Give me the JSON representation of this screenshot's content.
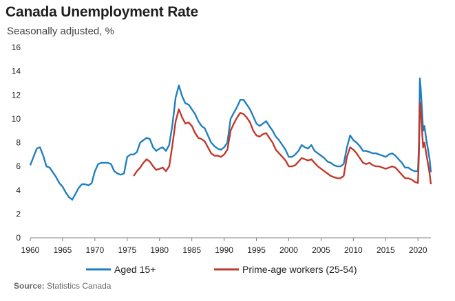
{
  "header": {
    "title": "Canada  Unemployment Rate",
    "subtitle": "Seasonally adjusted, %"
  },
  "source": {
    "label": "Source:",
    "text": "Statistics Canada"
  },
  "chart_data": {
    "type": "line",
    "title": "Canada  Unemployment Rate",
    "subtitle": "Seasonally adjusted, %",
    "xlabel": "",
    "ylabel": "",
    "xlim": [
      1960,
      2022
    ],
    "ylim": [
      0,
      16
    ],
    "xticks": [
      1960,
      1965,
      1970,
      1975,
      1980,
      1985,
      1990,
      1995,
      2000,
      2005,
      2010,
      2015,
      2020
    ],
    "yticks": [
      0,
      2,
      4,
      6,
      8,
      10,
      12,
      14,
      16
    ],
    "grid": false,
    "legend": "bottom",
    "series": [
      {
        "name": "Aged 15+",
        "color": "#1f7fc0",
        "points": [
          [
            1960.0,
            6.1
          ],
          [
            1960.5,
            6.8
          ],
          [
            1961.0,
            7.5
          ],
          [
            1961.5,
            7.6
          ],
          [
            1962.0,
            6.9
          ],
          [
            1962.5,
            6.0
          ],
          [
            1963.0,
            5.9
          ],
          [
            1963.5,
            5.5
          ],
          [
            1964.0,
            5.1
          ],
          [
            1964.5,
            4.6
          ],
          [
            1965.0,
            4.3
          ],
          [
            1965.5,
            3.8
          ],
          [
            1966.0,
            3.4
          ],
          [
            1966.5,
            3.2
          ],
          [
            1967.0,
            3.7
          ],
          [
            1967.5,
            4.2
          ],
          [
            1968.0,
            4.5
          ],
          [
            1968.5,
            4.5
          ],
          [
            1969.0,
            4.4
          ],
          [
            1969.5,
            4.6
          ],
          [
            1970.0,
            5.6
          ],
          [
            1970.5,
            6.2
          ],
          [
            1971.0,
            6.3
          ],
          [
            1971.5,
            6.3
          ],
          [
            1972.0,
            6.3
          ],
          [
            1972.5,
            6.2
          ],
          [
            1973.0,
            5.6
          ],
          [
            1973.5,
            5.4
          ],
          [
            1974.0,
            5.3
          ],
          [
            1974.5,
            5.4
          ],
          [
            1975.0,
            6.8
          ],
          [
            1975.5,
            7.0
          ],
          [
            1976.0,
            7.0
          ],
          [
            1976.5,
            7.2
          ],
          [
            1977.0,
            8.0
          ],
          [
            1977.5,
            8.2
          ],
          [
            1978.0,
            8.4
          ],
          [
            1978.5,
            8.3
          ],
          [
            1979.0,
            7.6
          ],
          [
            1979.5,
            7.3
          ],
          [
            1980.0,
            7.5
          ],
          [
            1980.5,
            7.6
          ],
          [
            1981.0,
            7.3
          ],
          [
            1981.5,
            7.8
          ],
          [
            1982.0,
            9.5
          ],
          [
            1982.5,
            11.8
          ],
          [
            1983.0,
            12.8
          ],
          [
            1983.5,
            11.9
          ],
          [
            1984.0,
            11.3
          ],
          [
            1984.5,
            11.2
          ],
          [
            1985.0,
            10.8
          ],
          [
            1985.5,
            10.4
          ],
          [
            1986.0,
            9.8
          ],
          [
            1986.5,
            9.4
          ],
          [
            1987.0,
            9.2
          ],
          [
            1987.5,
            8.6
          ],
          [
            1988.0,
            8.0
          ],
          [
            1988.5,
            7.7
          ],
          [
            1989.0,
            7.5
          ],
          [
            1989.5,
            7.4
          ],
          [
            1990.0,
            7.6
          ],
          [
            1990.5,
            8.0
          ],
          [
            1991.0,
            10.0
          ],
          [
            1991.5,
            10.5
          ],
          [
            1992.0,
            11.0
          ],
          [
            1992.5,
            11.6
          ],
          [
            1993.0,
            11.6
          ],
          [
            1993.5,
            11.2
          ],
          [
            1994.0,
            10.8
          ],
          [
            1994.5,
            10.2
          ],
          [
            1995.0,
            9.6
          ],
          [
            1995.5,
            9.4
          ],
          [
            1996.0,
            9.6
          ],
          [
            1996.5,
            9.8
          ],
          [
            1997.0,
            9.4
          ],
          [
            1997.5,
            9.0
          ],
          [
            1998.0,
            8.5
          ],
          [
            1998.5,
            8.2
          ],
          [
            1999.0,
            7.8
          ],
          [
            1999.5,
            7.4
          ],
          [
            2000.0,
            6.8
          ],
          [
            2000.5,
            6.8
          ],
          [
            2001.0,
            7.0
          ],
          [
            2001.5,
            7.3
          ],
          [
            2002.0,
            7.8
          ],
          [
            2002.5,
            7.6
          ],
          [
            2003.0,
            7.5
          ],
          [
            2003.5,
            7.8
          ],
          [
            2004.0,
            7.3
          ],
          [
            2004.5,
            7.1
          ],
          [
            2005.0,
            6.9
          ],
          [
            2005.5,
            6.7
          ],
          [
            2006.0,
            6.4
          ],
          [
            2006.5,
            6.3
          ],
          [
            2007.0,
            6.1
          ],
          [
            2007.5,
            6.0
          ],
          [
            2008.0,
            6.0
          ],
          [
            2008.5,
            6.2
          ],
          [
            2009.0,
            7.6
          ],
          [
            2009.5,
            8.6
          ],
          [
            2010.0,
            8.2
          ],
          [
            2010.5,
            8.0
          ],
          [
            2011.0,
            7.7
          ],
          [
            2011.5,
            7.3
          ],
          [
            2012.0,
            7.3
          ],
          [
            2012.5,
            7.2
          ],
          [
            2013.0,
            7.1
          ],
          [
            2013.5,
            7.1
          ],
          [
            2014.0,
            7.0
          ],
          [
            2014.5,
            6.9
          ],
          [
            2015.0,
            6.8
          ],
          [
            2015.5,
            7.0
          ],
          [
            2016.0,
            7.1
          ],
          [
            2016.5,
            6.9
          ],
          [
            2017.0,
            6.6
          ],
          [
            2017.5,
            6.3
          ],
          [
            2018.0,
            5.9
          ],
          [
            2018.5,
            5.9
          ],
          [
            2019.0,
            5.7
          ],
          [
            2019.5,
            5.6
          ],
          [
            2020.0,
            5.6
          ],
          [
            2020.15,
            7.9
          ],
          [
            2020.3,
            13.4
          ],
          [
            2020.45,
            12.3
          ],
          [
            2020.6,
            10.9
          ],
          [
            2020.8,
            9.0
          ],
          [
            2021.0,
            9.4
          ],
          [
            2021.3,
            8.2
          ],
          [
            2021.5,
            7.6
          ],
          [
            2021.8,
            6.6
          ],
          [
            2022.0,
            5.5
          ]
        ]
      },
      {
        "name": "Prime-age workers (25-54)",
        "color": "#c0392b",
        "points": [
          [
            1976.0,
            5.2
          ],
          [
            1976.5,
            5.6
          ],
          [
            1977.0,
            5.9
          ],
          [
            1977.5,
            6.3
          ],
          [
            1978.0,
            6.6
          ],
          [
            1978.5,
            6.4
          ],
          [
            1979.0,
            6.0
          ],
          [
            1979.5,
            5.7
          ],
          [
            1980.0,
            5.8
          ],
          [
            1980.5,
            5.9
          ],
          [
            1981.0,
            5.6
          ],
          [
            1981.5,
            6.0
          ],
          [
            1982.0,
            7.8
          ],
          [
            1982.5,
            9.8
          ],
          [
            1983.0,
            10.8
          ],
          [
            1983.5,
            10.1
          ],
          [
            1984.0,
            9.6
          ],
          [
            1984.5,
            9.7
          ],
          [
            1985.0,
            9.4
          ],
          [
            1985.5,
            8.8
          ],
          [
            1986.0,
            8.4
          ],
          [
            1986.5,
            8.3
          ],
          [
            1987.0,
            8.1
          ],
          [
            1987.5,
            7.6
          ],
          [
            1988.0,
            7.1
          ],
          [
            1988.5,
            6.9
          ],
          [
            1989.0,
            6.9
          ],
          [
            1989.5,
            6.8
          ],
          [
            1990.0,
            7.0
          ],
          [
            1990.5,
            7.4
          ],
          [
            1991.0,
            9.0
          ],
          [
            1991.5,
            9.6
          ],
          [
            1992.0,
            10.1
          ],
          [
            1992.5,
            10.5
          ],
          [
            1993.0,
            10.4
          ],
          [
            1993.5,
            10.1
          ],
          [
            1994.0,
            9.7
          ],
          [
            1994.5,
            9.0
          ],
          [
            1995.0,
            8.6
          ],
          [
            1995.5,
            8.5
          ],
          [
            1996.0,
            8.7
          ],
          [
            1996.5,
            8.8
          ],
          [
            1997.0,
            8.4
          ],
          [
            1997.5,
            8.0
          ],
          [
            1998.0,
            7.4
          ],
          [
            1998.5,
            7.1
          ],
          [
            1999.0,
            6.8
          ],
          [
            1999.5,
            6.5
          ],
          [
            2000.0,
            6.0
          ],
          [
            2000.5,
            6.0
          ],
          [
            2001.0,
            6.1
          ],
          [
            2001.5,
            6.4
          ],
          [
            2002.0,
            6.7
          ],
          [
            2002.5,
            6.6
          ],
          [
            2003.0,
            6.5
          ],
          [
            2003.5,
            6.6
          ],
          [
            2004.0,
            6.3
          ],
          [
            2004.5,
            6.0
          ],
          [
            2005.0,
            5.8
          ],
          [
            2005.5,
            5.6
          ],
          [
            2006.0,
            5.4
          ],
          [
            2006.5,
            5.2
          ],
          [
            2007.0,
            5.1
          ],
          [
            2007.5,
            5.0
          ],
          [
            2008.0,
            5.0
          ],
          [
            2008.5,
            5.2
          ],
          [
            2009.0,
            6.8
          ],
          [
            2009.5,
            7.6
          ],
          [
            2010.0,
            7.4
          ],
          [
            2010.5,
            7.1
          ],
          [
            2011.0,
            6.7
          ],
          [
            2011.5,
            6.3
          ],
          [
            2012.0,
            6.2
          ],
          [
            2012.5,
            6.3
          ],
          [
            2013.0,
            6.1
          ],
          [
            2013.5,
            6.0
          ],
          [
            2014.0,
            6.0
          ],
          [
            2014.5,
            5.9
          ],
          [
            2015.0,
            5.8
          ],
          [
            2015.5,
            5.9
          ],
          [
            2016.0,
            6.0
          ],
          [
            2016.5,
            5.9
          ],
          [
            2017.0,
            5.6
          ],
          [
            2017.5,
            5.3
          ],
          [
            2018.0,
            5.0
          ],
          [
            2018.5,
            5.0
          ],
          [
            2019.0,
            4.9
          ],
          [
            2019.5,
            4.7
          ],
          [
            2020.0,
            4.6
          ],
          [
            2020.15,
            7.0
          ],
          [
            2020.3,
            11.4
          ],
          [
            2020.45,
            10.6
          ],
          [
            2020.6,
            9.2
          ],
          [
            2020.8,
            7.6
          ],
          [
            2021.0,
            8.0
          ],
          [
            2021.3,
            7.0
          ],
          [
            2021.5,
            6.4
          ],
          [
            2021.8,
            5.4
          ],
          [
            2022.0,
            4.5
          ]
        ]
      }
    ]
  }
}
